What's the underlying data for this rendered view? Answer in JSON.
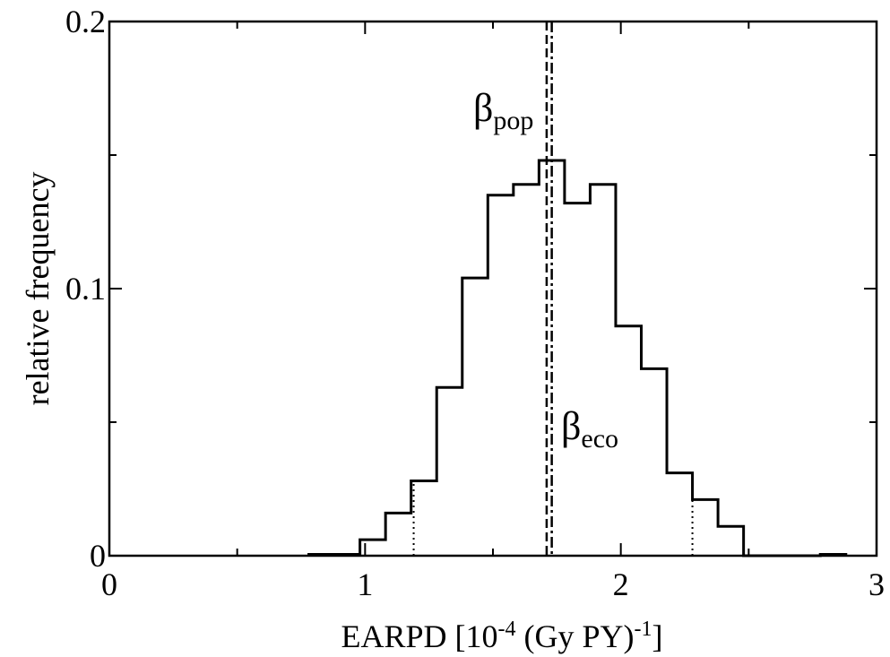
{
  "chart_data": {
    "type": "histogram",
    "xlabel": {
      "main": "EARPD [10",
      "exp1": "-4",
      "mid": " (Gy PY)",
      "exp2": "-1",
      "end": "]"
    },
    "ylabel": "relative frequency",
    "xlim": [
      0,
      3
    ],
    "ylim": [
      0,
      0.2
    ],
    "x_ticks": [
      "0",
      "1",
      "2",
      "3"
    ],
    "y_ticks": [
      "0",
      "0.1",
      "0.2"
    ],
    "bin_edges": [
      0.78,
      0.88,
      0.98,
      1.08,
      1.18,
      1.28,
      1.38,
      1.48,
      1.58,
      1.68,
      1.78,
      1.88,
      1.98,
      2.08,
      2.18,
      2.28,
      2.38,
      2.48,
      2.58,
      2.68,
      2.78,
      2.88
    ],
    "values": [
      0.0005,
      0.0005,
      0.006,
      0.016,
      0.028,
      0.063,
      0.104,
      0.135,
      0.139,
      0.148,
      0.132,
      0.139,
      0.086,
      0.07,
      0.031,
      0.021,
      0.011,
      0.0,
      0.0,
      0.0,
      0.0005
    ],
    "histogram_color": "#000000",
    "markers": [
      {
        "name": "β",
        "sub": "pop",
        "x": 1.71,
        "style": "dashed"
      },
      {
        "name": "β",
        "sub": "eco",
        "x": 1.73,
        "style": "dash-dot"
      }
    ],
    "interval": {
      "lower": 1.19,
      "upper": 2.28,
      "style": "dotted"
    }
  }
}
